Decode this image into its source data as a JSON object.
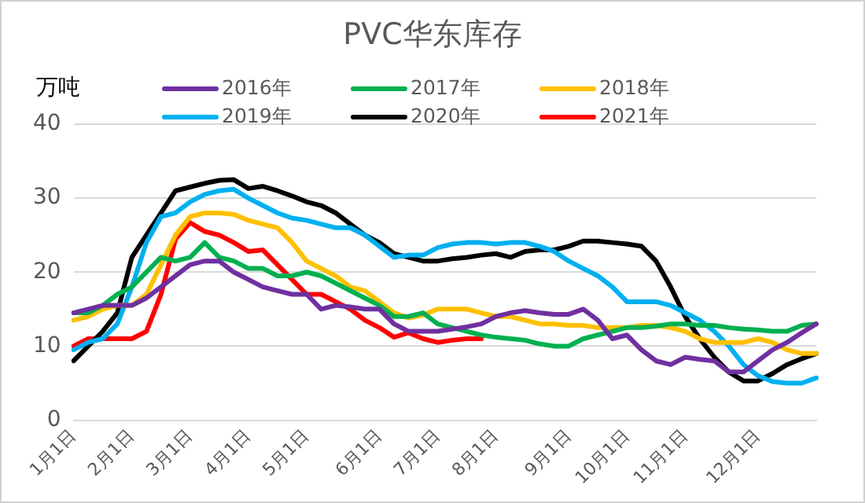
{
  "chart_data": {
    "type": "line",
    "title": "PVC华东库存",
    "ylabel": "万吨",
    "categories": [
      "1月1日",
      null,
      null,
      null,
      "2月1日",
      null,
      null,
      null,
      "3月1日",
      null,
      null,
      null,
      "4月1日",
      null,
      null,
      null,
      "5月1日",
      null,
      null,
      null,
      null,
      "6月1日",
      null,
      null,
      null,
      "7月1日",
      null,
      null,
      null,
      "8月1日",
      null,
      null,
      null,
      null,
      "9月1日",
      null,
      null,
      null,
      "10月1日",
      null,
      null,
      null,
      "11月1日",
      null,
      null,
      null,
      null,
      "12月1日",
      null,
      null,
      null,
      null
    ],
    "series": [
      {
        "name": "2016年",
        "color": "#7030a0",
        "values": [
          14.5,
          15,
          15.5,
          15.5,
          15.5,
          16.5,
          18,
          19.5,
          21,
          21.5,
          21.5,
          20,
          19,
          18,
          17.5,
          17,
          17,
          15,
          15.5,
          15.3,
          15,
          15,
          13,
          12,
          12,
          12,
          12.3,
          12.6,
          13,
          14,
          14.5,
          14.8,
          14.5,
          14.3,
          14.3,
          15,
          13.5,
          11,
          11.5,
          9.5,
          8,
          7.5,
          8.5,
          8.2,
          8,
          6.5,
          6.5,
          8,
          9.5,
          10.5,
          11.8,
          13
        ]
      },
      {
        "name": "2017年",
        "color": "#00b050",
        "values": [
          14.5,
          14.5,
          15.5,
          17,
          18,
          20,
          22,
          21.5,
          22,
          24,
          22,
          21.5,
          20.5,
          20.5,
          19.5,
          19.5,
          20,
          19.5,
          18.5,
          17.5,
          16.5,
          15.5,
          14,
          14,
          14.5,
          13,
          12.5,
          12,
          11.5,
          11.2,
          11,
          10.8,
          10.3,
          10,
          10,
          11,
          11.5,
          12,
          12.5,
          12.5,
          12.7,
          13,
          13,
          12.8,
          12.8,
          12.5,
          12.3,
          12.2,
          12,
          12,
          12.8,
          13
        ]
      },
      {
        "name": "2018年",
        "color": "#ffc000",
        "values": [
          13.5,
          14,
          15,
          15.5,
          15.5,
          17,
          21,
          25,
          27.5,
          28,
          28,
          27.8,
          27,
          26.5,
          26,
          24,
          21.5,
          20.5,
          19.5,
          18,
          17.5,
          16,
          14.5,
          13.8,
          14.2,
          15,
          15,
          15,
          14.5,
          14,
          14,
          13.5,
          13,
          13,
          12.8,
          12.8,
          12.5,
          12.5,
          12.5,
          12.8,
          12.8,
          12.5,
          12,
          11,
          10.5,
          10.5,
          10.5,
          11,
          10.5,
          9.5,
          9,
          9
        ]
      },
      {
        "name": "2019年",
        "color": "#00b0f0",
        "values": [
          9.5,
          10.5,
          11,
          13,
          18,
          24,
          27.5,
          28,
          29.5,
          30.5,
          31,
          31.2,
          30,
          29,
          28,
          27.3,
          27,
          26.5,
          26,
          26,
          25,
          23.5,
          22,
          22.3,
          22.3,
          23.3,
          23.8,
          24,
          24,
          23.8,
          24,
          24,
          23.5,
          22.8,
          21.5,
          20.5,
          19.5,
          18,
          16,
          16,
          16,
          15.5,
          14.5,
          13.5,
          12,
          10,
          7.5,
          6,
          5.2,
          5,
          5,
          5.7
        ]
      },
      {
        "name": "2020年",
        "color": "#000000",
        "values": [
          8,
          10,
          12,
          14.5,
          22,
          25,
          28,
          31,
          31.5,
          32,
          32.4,
          32.5,
          31.3,
          31.6,
          31,
          30.3,
          29.5,
          29,
          28,
          26.5,
          25,
          24,
          22.5,
          22,
          21.5,
          21.5,
          21.8,
          22,
          22.3,
          22.5,
          22,
          22.8,
          23,
          23,
          23.5,
          24.2,
          24.2,
          24,
          23.8,
          23.5,
          21.5,
          18,
          14,
          11,
          8.5,
          6.5,
          5.3,
          5.3,
          6.3,
          7.5,
          8.3,
          9
        ]
      },
      {
        "name": "2021年",
        "color": "#ff0000",
        "values": [
          10,
          11,
          11,
          11,
          11,
          12,
          17,
          24.5,
          26.7,
          25.5,
          25,
          24,
          22.8,
          23,
          21,
          19,
          17,
          17,
          16,
          15,
          13.5,
          12.5,
          11.2,
          11.8,
          11,
          10.5,
          10.8,
          11,
          11,
          null,
          null,
          null,
          null,
          null,
          null,
          null,
          null,
          null,
          null,
          null,
          null,
          null,
          null,
          null,
          null,
          null,
          null,
          null,
          null,
          null,
          null,
          null
        ]
      }
    ],
    "ylim": [
      0,
      40
    ],
    "yticks": [
      0,
      10,
      20,
      30,
      40
    ],
    "grid": "y",
    "legend": "top",
    "marker": "none",
    "line_style": "solid"
  }
}
